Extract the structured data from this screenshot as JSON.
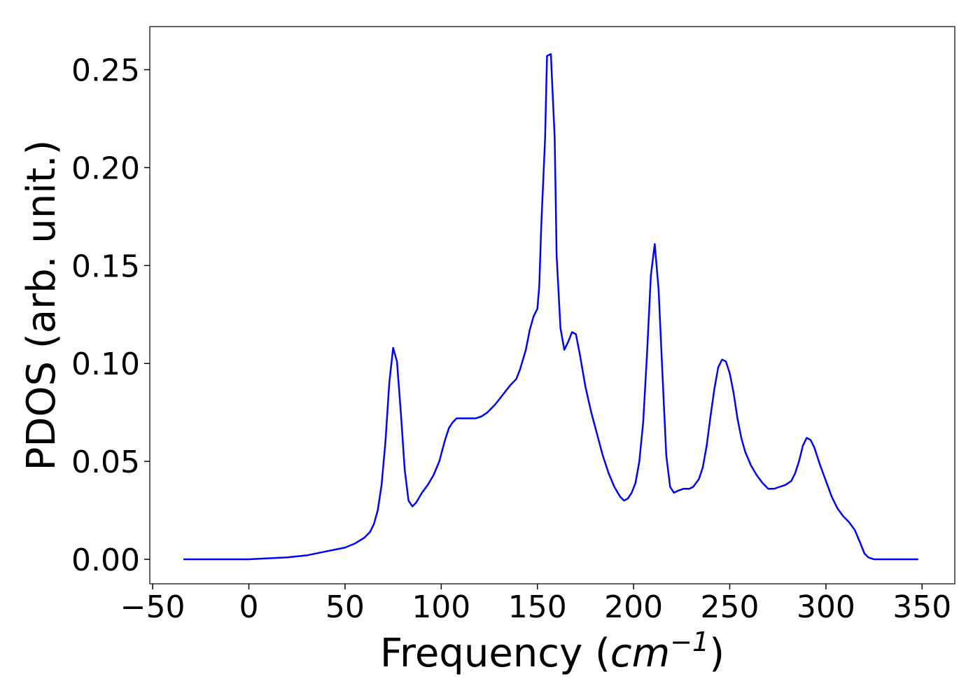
{
  "chart_data": {
    "type": "line",
    "xlabel": [
      "Frequency (",
      "cm",
      "−1",
      ")"
    ],
    "ylabel": "PDOS (arb. unit.)",
    "x": [
      -34,
      0,
      10,
      20,
      30,
      40,
      50,
      55,
      60,
      63,
      65,
      67,
      69,
      71,
      73,
      75,
      77,
      79,
      81,
      83,
      85,
      87,
      90,
      93,
      96,
      99,
      102,
      104,
      106,
      108,
      112,
      118,
      121,
      124,
      128,
      132,
      136,
      139,
      141,
      144,
      146,
      148,
      150,
      151,
      152,
      154,
      155,
      157,
      159,
      160,
      162,
      164,
      166,
      168,
      170,
      172,
      175,
      178,
      181,
      184,
      187,
      190,
      193,
      195,
      197,
      199,
      201,
      203,
      205,
      207,
      209,
      211,
      213,
      215,
      217,
      219,
      221,
      223,
      226,
      229,
      231,
      234,
      236,
      238,
      240,
      242,
      244,
      246,
      248,
      250,
      252,
      254,
      256,
      258,
      261,
      264,
      267,
      270,
      273,
      276,
      279,
      282,
      284,
      286,
      288,
      290,
      292,
      294,
      297,
      300,
      303,
      306,
      309,
      312,
      315,
      318,
      320,
      322,
      325,
      348
    ],
    "series": [
      {
        "name": "PDOS",
        "color": "#0000ff",
        "values": [
          0,
          0,
          0.0005,
          0.001,
          0.002,
          0.004,
          0.006,
          0.008,
          0.011,
          0.014,
          0.018,
          0.025,
          0.038,
          0.06,
          0.09,
          0.108,
          0.101,
          0.075,
          0.046,
          0.03,
          0.027,
          0.029,
          0.034,
          0.038,
          0.043,
          0.05,
          0.061,
          0.067,
          0.07,
          0.072,
          0.072,
          0.072,
          0.073,
          0.075,
          0.079,
          0.084,
          0.089,
          0.092,
          0.097,
          0.107,
          0.117,
          0.124,
          0.128,
          0.14,
          0.17,
          0.215,
          0.257,
          0.258,
          0.215,
          0.155,
          0.118,
          0.107,
          0.111,
          0.116,
          0.115,
          0.105,
          0.088,
          0.075,
          0.064,
          0.053,
          0.044,
          0.037,
          0.032,
          0.03,
          0.031,
          0.034,
          0.039,
          0.05,
          0.07,
          0.105,
          0.145,
          0.161,
          0.138,
          0.095,
          0.053,
          0.037,
          0.034,
          0.035,
          0.036,
          0.036,
          0.037,
          0.041,
          0.047,
          0.058,
          0.073,
          0.087,
          0.098,
          0.102,
          0.101,
          0.095,
          0.085,
          0.072,
          0.062,
          0.055,
          0.048,
          0.043,
          0.039,
          0.036,
          0.036,
          0.037,
          0.038,
          0.04,
          0.044,
          0.05,
          0.058,
          0.062,
          0.061,
          0.057,
          0.048,
          0.04,
          0.032,
          0.026,
          0.022,
          0.019,
          0.015,
          0.008,
          0.003,
          0.001,
          0,
          0
        ]
      }
    ],
    "xlim": [
      -51.5,
      367
    ],
    "ylim": [
      -0.0125,
      0.272
    ],
    "xticks": [
      {
        "value": -50,
        "label": "−50"
      },
      0,
      50,
      100,
      150,
      200,
      250,
      300,
      350
    ],
    "yticks": [
      {
        "value": 0,
        "label": "0.00"
      },
      {
        "value": 0.05,
        "label": "0.05"
      },
      {
        "value": 0.1,
        "label": "0.10"
      },
      {
        "value": 0.15,
        "label": "0.15"
      },
      {
        "value": 0.2,
        "label": "0.20"
      },
      {
        "value": 0.25,
        "label": "0.25"
      }
    ],
    "grid": false
  }
}
